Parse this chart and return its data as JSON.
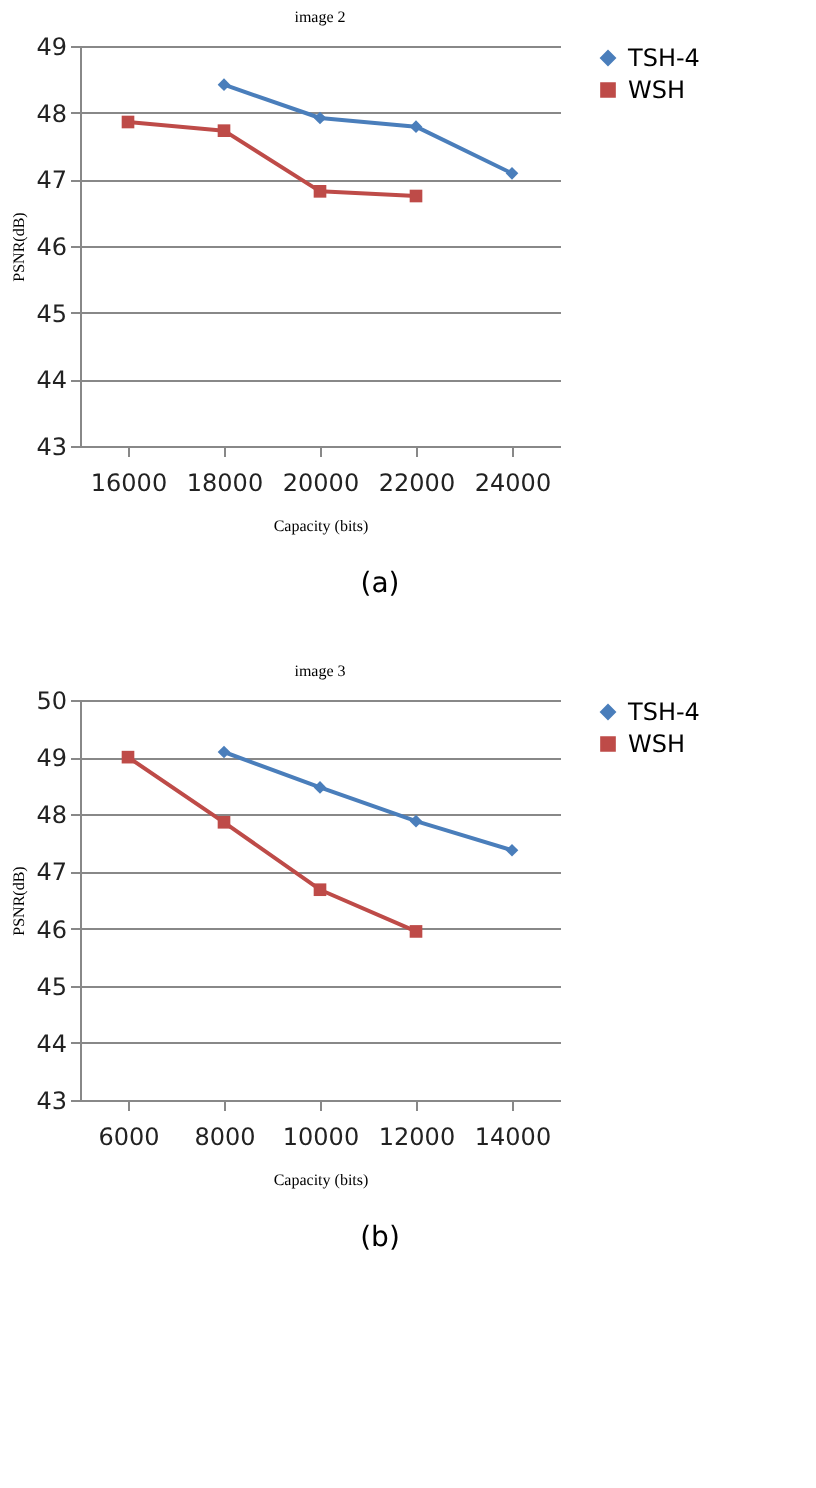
{
  "chart_data": [
    {
      "type": "line",
      "title": "image 2",
      "xlabel": "Capacity (bits)",
      "ylabel": "PSNR(dB)",
      "categories": [
        "16000",
        "18000",
        "20000",
        "22000",
        "24000"
      ],
      "ylim": [
        43,
        49
      ],
      "yticks": [
        43,
        44,
        45,
        46,
        47,
        48,
        49
      ],
      "grid": "y",
      "legend": "right",
      "annotations": [
        "(a)"
      ],
      "series": [
        {
          "name": "TSH-4",
          "color": "#4a7ebb",
          "marker": "diamond",
          "values": [
            null,
            48.42,
            47.92,
            47.79,
            47.09
          ]
        },
        {
          "name": "WSH",
          "color": "#be4b48",
          "marker": "square",
          "values": [
            47.86,
            47.73,
            46.82,
            46.75,
            null
          ]
        }
      ]
    },
    {
      "type": "line",
      "title": "image 3",
      "xlabel": "Capacity (bits)",
      "ylabel": "PSNR(dB)",
      "categories": [
        "6000",
        "8000",
        "10000",
        "12000",
        "14000"
      ],
      "ylim": [
        43,
        50
      ],
      "yticks": [
        43,
        44,
        45,
        46,
        47,
        48,
        49,
        50
      ],
      "grid": "y",
      "legend": "right",
      "annotations": [
        "(b)"
      ],
      "series": [
        {
          "name": "TSH-4",
          "color": "#4a7ebb",
          "marker": "diamond",
          "values": [
            null,
            49.09,
            48.47,
            47.88,
            47.37
          ]
        },
        {
          "name": "WSH",
          "color": "#be4b48",
          "marker": "square",
          "values": [
            49.0,
            47.86,
            46.68,
            45.95,
            null
          ]
        }
      ]
    }
  ]
}
